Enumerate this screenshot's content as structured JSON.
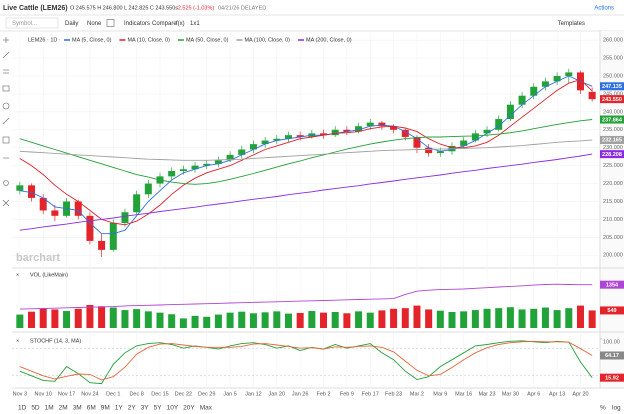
{
  "header": {
    "title": "Live Cattle (LEM26)",
    "quote": "O 245.575 H 246.800 L 242.825 C 243.550s",
    "change": "-2.525 (-1.03%)",
    "date": "04/21/26 DELAYED",
    "actions": "Actions"
  },
  "toolbar": {
    "search": "Symbol...",
    "period": "Daily",
    "style": "None",
    "indicators": "Indicators",
    "compare": "Compare",
    "fx": "f(x)",
    "layout": "1x1",
    "templates": "Templates"
  },
  "chart": {
    "symbol_label": "LEM26 · 1D ·",
    "watermark": "barchart",
    "up_color": "#22a33a",
    "down_color": "#e3242b",
    "dates": [
      "Nov 3",
      "Nov 10",
      "Nov 17",
      "Nov 24",
      "Dec 1",
      "Dec 8",
      "Dec 15",
      "Dec 22",
      "Dec 29",
      "Jan 5",
      "Jan 12",
      "Jan 20",
      "Jan 26",
      "Feb 2",
      "Feb 9",
      "Feb 17",
      "Feb 23",
      "Mar 2",
      "Mar 9",
      "Mar 16",
      "Mar 23",
      "Mar 30",
      "Apr 6",
      "Apr 13",
      "Apr 20"
    ],
    "price": {
      "ylim": [
        197,
        262
      ],
      "yticks": [
        {
          "value": 200,
          "label": "200.000"
        },
        {
          "value": 205,
          "label": "205.000"
        },
        {
          "value": 210,
          "label": "210.000"
        },
        {
          "value": 215,
          "label": "215.000"
        },
        {
          "value": 220,
          "label": "220.000"
        },
        {
          "value": 225,
          "label": "225.000"
        },
        {
          "value": 230,
          "label": "230.000"
        },
        {
          "value": 235,
          "label": "235.000"
        },
        {
          "value": 240,
          "label": "240.000"
        },
        {
          "value": 245,
          "label": "245.000"
        },
        {
          "value": 250,
          "label": "250.000"
        },
        {
          "value": 255,
          "label": "255.000"
        },
        {
          "value": 260,
          "label": "260.000"
        }
      ],
      "open": [
        218,
        219.5,
        216,
        212.5,
        211,
        215,
        211,
        204,
        201.5,
        209,
        212,
        217,
        220,
        222,
        223.5,
        224,
        225,
        225.5,
        226.5,
        228,
        229.5,
        231,
        232,
        232.5,
        233.5,
        233,
        234,
        233.5,
        235,
        234.5,
        236,
        237,
        236,
        235,
        233,
        230,
        228.5,
        229,
        230.5,
        232,
        234,
        235,
        238,
        242,
        244.5,
        247,
        248.5,
        250,
        251,
        245.575
      ],
      "high": [
        220.5,
        220,
        217,
        214,
        216,
        215.5,
        212,
        206,
        210,
        213,
        218,
        221,
        223,
        224.5,
        225,
        226,
        226.5,
        227.5,
        229,
        230.5,
        232,
        233,
        233.5,
        234.5,
        234.5,
        235,
        235,
        236,
        236,
        237,
        238,
        237.5,
        236.5,
        235.5,
        233.5,
        231,
        230,
        231.5,
        233,
        235,
        236,
        239,
        243,
        245.5,
        248,
        249.5,
        251,
        252,
        251.5,
        246.8
      ],
      "low": [
        217,
        215,
        211.5,
        209.5,
        210.5,
        210,
        203,
        199.5,
        201,
        208,
        211.5,
        216,
        219,
        221,
        222.5,
        223,
        224,
        224.5,
        226,
        227,
        228.5,
        230,
        231,
        231.5,
        232,
        232.5,
        232.5,
        233,
        233.5,
        234,
        235,
        235,
        234,
        232,
        228.5,
        227.5,
        227.5,
        228,
        230,
        231.5,
        233,
        234.5,
        237.5,
        241,
        243.5,
        246,
        247.5,
        248,
        245,
        242.825
      ],
      "close": [
        219.5,
        216,
        212.5,
        211,
        215,
        211,
        204,
        201.5,
        209,
        212,
        217,
        220,
        222,
        223.5,
        224,
        225,
        225.5,
        226.5,
        228,
        229.5,
        231,
        232,
        232.5,
        233.5,
        233,
        234,
        233.5,
        235,
        234.5,
        236,
        237,
        236,
        235,
        233,
        230,
        228.5,
        229,
        230.5,
        232,
        234,
        235,
        238,
        242,
        244.5,
        247,
        248.5,
        250,
        251,
        246,
        243.55
      ],
      "series": [
        {
          "name": "MA (5, Close, 0)",
          "color": "#2f6fde",
          "values": [
            218,
            217.5,
            216,
            213.5,
            213,
            212.5,
            209,
            206,
            206,
            207,
            211,
            215,
            218,
            221,
            223,
            224,
            225,
            225.5,
            226.5,
            228,
            229.5,
            231,
            232,
            232.5,
            233,
            233.5,
            233.5,
            234,
            234.5,
            235,
            236,
            236.3,
            236,
            234.5,
            232.5,
            230,
            229,
            229.5,
            230.5,
            232,
            234,
            236,
            239,
            242,
            244.5,
            247,
            248.5,
            250,
            248.5,
            247.135
          ]
        },
        {
          "name": "MA (10, Close, 0)",
          "color": "#e0202a",
          "values": [
            227,
            225,
            222.5,
            219.5,
            217,
            215,
            212.5,
            210,
            209,
            208.5,
            209.5,
            211.5,
            214,
            217,
            219.5,
            221.5,
            223,
            224,
            225,
            226.5,
            228,
            229.5,
            230.5,
            231.5,
            232.5,
            233,
            233.5,
            234,
            234.2,
            234.5,
            235.3,
            235.8,
            236,
            235.5,
            234.5,
            232.5,
            231,
            230,
            230,
            230.5,
            231.5,
            233.5,
            236,
            238.5,
            241,
            243.5,
            246,
            248,
            249,
            245.8
          ]
        },
        {
          "name": "MA (50, Close, 0)",
          "color": "#23a036",
          "values": [
            232.5,
            231.5,
            230.5,
            229.5,
            228.5,
            227.5,
            226.5,
            225.5,
            224.5,
            223.5,
            222.5,
            221.8,
            221,
            220.4,
            220,
            219.8,
            220,
            220.5,
            221.2,
            222,
            222.8,
            223.7,
            224.6,
            225.5,
            226.3,
            227.2,
            228,
            228.8,
            229.6,
            230.3,
            231,
            231.6,
            232.1,
            232.5,
            232.8,
            233,
            233,
            233.1,
            233.2,
            233.3,
            233.5,
            233.8,
            234.2,
            234.7,
            235.3,
            235.9,
            236.5,
            237,
            237.5,
            237.864
          ]
        },
        {
          "name": "MA (100, Close, 0)",
          "color": "#a0a0a0",
          "values": [
            229,
            228.8,
            228.6,
            228.4,
            228.2,
            228,
            227.8,
            227.6,
            227.4,
            227.2,
            227,
            226.8,
            226.7,
            226.6,
            226.5,
            226.5,
            226.5,
            226.6,
            226.7,
            226.8,
            227,
            227.2,
            227.4,
            227.6,
            227.8,
            228,
            228.2,
            228.4,
            228.6,
            228.8,
            229,
            229.2,
            229.3,
            229.4,
            229.5,
            229.5,
            229.6,
            229.7,
            229.8,
            229.9,
            230,
            230.2,
            230.4,
            230.6,
            230.9,
            231.2,
            231.5,
            231.7,
            231.9,
            232.165
          ]
        },
        {
          "name": "MA (200, Close, 0)",
          "color": "#8a2be2",
          "values": [
            207,
            207.4,
            207.9,
            208.3,
            208.7,
            209.2,
            209.6,
            210,
            210.4,
            210.9,
            211.3,
            211.7,
            212.2,
            212.6,
            213,
            213.4,
            213.9,
            214.3,
            214.7,
            215.2,
            215.6,
            216,
            216.4,
            216.9,
            217.3,
            217.7,
            218.2,
            218.6,
            219,
            219.4,
            219.9,
            220.3,
            220.7,
            221.2,
            221.6,
            222,
            222.4,
            222.9,
            223.3,
            223.7,
            224.2,
            224.6,
            225,
            225.4,
            225.9,
            226.3,
            226.7,
            227.2,
            227.7,
            228.208
          ]
        }
      ],
      "flags": [
        {
          "value": 247.135,
          "label": "247.135",
          "color": "#2f6fde"
        },
        {
          "value": 243.55,
          "label": "243.550",
          "color": "#e3242b"
        },
        {
          "value": 237.864,
          "label": "237.864",
          "color": "#23a036"
        },
        {
          "value": 232.165,
          "label": "232.165",
          "color": "#a0a0a0"
        },
        {
          "value": 228.208,
          "label": "228.208",
          "color": "#8a2be2"
        }
      ]
    },
    "volume": {
      "title": "VOL (LikeMain)",
      "ylim": [
        0,
        1500
      ],
      "values": [
        420,
        510,
        610,
        580,
        530,
        600,
        720,
        680,
        640,
        560,
        590,
        520,
        480,
        430,
        300,
        380,
        350,
        420,
        480,
        510,
        460,
        490,
        520,
        450,
        470,
        530,
        480,
        500,
        460,
        520,
        480,
        550,
        600,
        620,
        700,
        580,
        540,
        500,
        520,
        560,
        600,
        620,
        650,
        580,
        600,
        640,
        560,
        620,
        700,
        549
      ],
      "line_color": "#b146d6",
      "line_values": [
        590,
        600,
        610,
        620,
        630,
        640,
        650,
        660,
        670,
        690,
        700,
        710,
        720,
        730,
        740,
        750,
        760,
        770,
        780,
        790,
        800,
        810,
        820,
        830,
        840,
        850,
        860,
        870,
        880,
        890,
        900,
        910,
        920,
        1050,
        1150,
        1180,
        1200,
        1210,
        1220,
        1240,
        1260,
        1280,
        1300,
        1320,
        1340,
        1360,
        1370,
        1360,
        1354,
        1354
      ],
      "flags": [
        {
          "value": 1354,
          "label": "1354",
          "color": "#b146d6"
        },
        {
          "value": 549,
          "label": "549",
          "color": "#e3242b"
        }
      ]
    },
    "stoch": {
      "title": "STOCHF (14, 3, MA)",
      "ylim": [
        0,
        100
      ],
      "yticks": [
        {
          "value": 100,
          "label": "100.00"
        }
      ],
      "levels": [
        80,
        20
      ],
      "series": [
        {
          "color": "#23a036",
          "values": [
            30,
            20,
            10,
            8,
            40,
            25,
            5,
            3,
            45,
            70,
            85,
            90,
            92,
            88,
            80,
            85,
            82,
            78,
            85,
            90,
            92,
            88,
            80,
            85,
            75,
            82,
            78,
            88,
            80,
            85,
            90,
            70,
            55,
            30,
            12,
            18,
            40,
            55,
            70,
            85,
            88,
            92,
            95,
            96,
            94,
            92,
            95,
            93,
            50,
            15.92
          ]
        },
        {
          "color": "#e8663a",
          "values": [
            40,
            30,
            20,
            13,
            19,
            24,
            23,
            11,
            18,
            39,
            67,
            82,
            89,
            90,
            87,
            84,
            82,
            82,
            82,
            84,
            89,
            90,
            87,
            84,
            80,
            81,
            78,
            83,
            82,
            84,
            85,
            82,
            72,
            52,
            32,
            20,
            23,
            38,
            55,
            70,
            81,
            88,
            92,
            94,
            95,
            94,
            94,
            93,
            79,
            64.17
          ]
        }
      ],
      "flags": [
        {
          "value": 64.17,
          "label": "64.17",
          "color": "#888888"
        },
        {
          "value": 15.92,
          "label": "15.92",
          "color": "#e3242b"
        }
      ]
    },
    "ranges": [
      "1D",
      "5D",
      "1M",
      "2M",
      "3M",
      "6M",
      "9M",
      "1Y",
      "2Y",
      "3Y",
      "5Y",
      "10Y",
      "20Y",
      "Max"
    ],
    "scale_buttons": [
      "%",
      "log"
    ]
  }
}
